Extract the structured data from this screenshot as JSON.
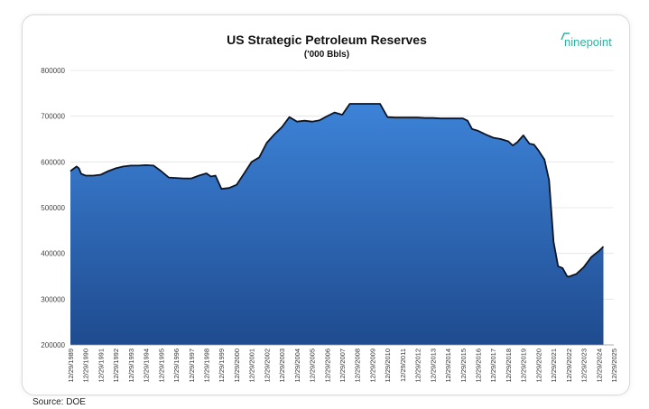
{
  "chart_data": {
    "type": "area",
    "title": "US Strategic Petroleum Reserves",
    "subtitle": "('000 Bbls)",
    "xlabel": "",
    "ylabel": "",
    "ylim": [
      200000,
      800000
    ],
    "y_ticks": [
      "200000",
      "300000",
      "400000",
      "500000",
      "600000",
      "700000",
      "800000"
    ],
    "x_ticks": [
      "12/29/1989",
      "12/29/1990",
      "12/29/1991",
      "12/29/1992",
      "12/29/1993",
      "12/29/1994",
      "12/29/1995",
      "12/29/1996",
      "12/29/1997",
      "12/29/1998",
      "12/29/1999",
      "12/29/2000",
      "12/29/2001",
      "12/29/2002",
      "12/29/2003",
      "12/29/2004",
      "12/29/2005",
      "12/29/2006",
      "12/29/2007",
      "12/29/2008",
      "12/29/2009",
      "12/29/2010",
      "12/29/2011",
      "12/29/2012",
      "12/29/2013",
      "12/29/2014",
      "12/29/2015",
      "12/29/2016",
      "12/29/2017",
      "12/29/2018",
      "12/29/2019",
      "12/29/2020",
      "12/29/2021",
      "12/29/2022",
      "12/29/2023",
      "12/29/2024",
      "12/29/2025"
    ],
    "grid": true,
    "series": [
      {
        "x": [
          1989.99,
          1990.4,
          1990.55,
          1990.7,
          1991,
          1991.5,
          1992,
          1992.5,
          1993,
          1993.5,
          1994,
          1994.5,
          1995,
          1995.5,
          1996,
          1996.5,
          1997,
          1997.5,
          1998,
          1998.5,
          1999,
          1999.3,
          1999.6,
          2000,
          2000.5,
          2001,
          2001.5,
          2002,
          2002.5,
          2003,
          2003.5,
          2004,
          2004.5,
          2005,
          2005.5,
          2006,
          2006.5,
          2007,
          2007.5,
          2008,
          2008.5,
          2009,
          2009.5,
          2010,
          2010.5,
          2011,
          2011.5,
          2012,
          2012.5,
          2013,
          2013.5,
          2014,
          2014.5,
          2015,
          2015.5,
          2016,
          2016.3,
          2016.6,
          2017,
          2017.5,
          2018,
          2018.5,
          2019,
          2019.3,
          2019.6,
          2020,
          2020.4,
          2020.7,
          2021,
          2021.4,
          2021.7,
          2022,
          2022.3,
          2022.6,
          2022.9,
          2023,
          2023.5,
          2024,
          2024.5,
          2025,
          2025.3
        ],
        "y": [
          580000,
          590000,
          586000,
          574000,
          570000,
          570000,
          572000,
          580000,
          586000,
          590000,
          592000,
          592000,
          593000,
          592000,
          580000,
          566000,
          565000,
          564000,
          564000,
          570000,
          575000,
          568000,
          570000,
          541000,
          543000,
          550000,
          575000,
          600000,
          610000,
          642000,
          660000,
          676000,
          698000,
          688000,
          690000,
          688000,
          691000,
          700000,
          708000,
          703000,
          727000,
          727000,
          727000,
          727000,
          727000,
          698000,
          697000,
          697000,
          697000,
          697000,
          696000,
          696000,
          695000,
          695000,
          695000,
          695000,
          690000,
          672000,
          668000,
          660000,
          653000,
          650000,
          645000,
          636000,
          643000,
          658000,
          640000,
          638000,
          625000,
          605000,
          560000,
          425000,
          372000,
          368000,
          350000,
          349000,
          355000,
          370000,
          392000,
          405000,
          415000
        ]
      }
    ]
  },
  "source_label": "Source: DOE",
  "logo_text": "ninepoint",
  "colors": {
    "fill_top": "#3d83d8",
    "fill_bottom": "#1f4b8f",
    "line": "#0d1524",
    "logo": "#2bb3a0"
  }
}
